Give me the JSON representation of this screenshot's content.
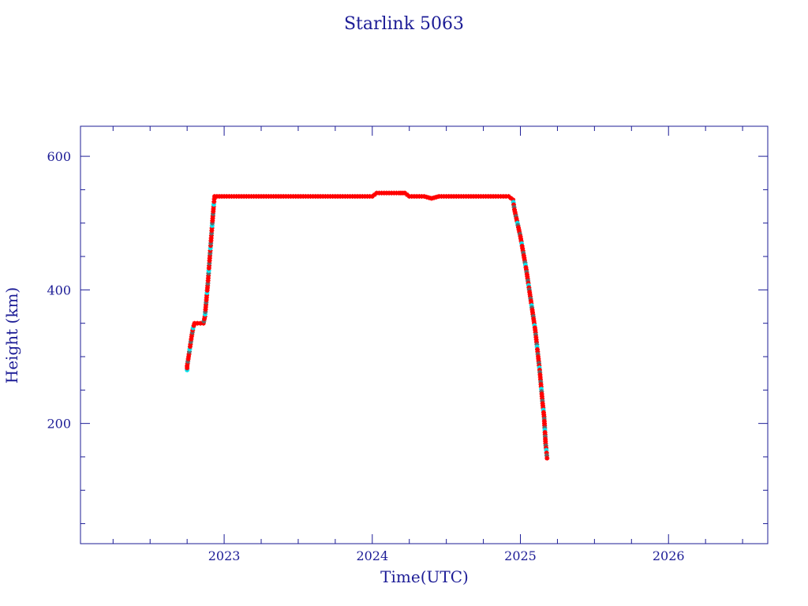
{
  "colors": {
    "axis": "#1c1c96",
    "text": "#1c1c96",
    "points": "#ff0000",
    "points_alt": "#00e5ee",
    "points_dark": "#666666"
  },
  "chart_data": {
    "type": "scatter",
    "title": "Starlink 5063",
    "xlabel": "Time(UTC)",
    "ylabel": "Height (km)",
    "x_unit": "year",
    "xlim": [
      2022.03,
      2026.67
    ],
    "ylim": [
      20,
      645
    ],
    "xticks": [
      2023,
      2024,
      2025,
      2026
    ],
    "xtick_labels": [
      "2023",
      "2024",
      "2025",
      "2026"
    ],
    "yticks": [
      200,
      400,
      600
    ],
    "ytick_labels": [
      "200",
      "400",
      "600"
    ],
    "grid": false,
    "series": [
      {
        "marker": "star",
        "points": [
          [
            2022.75,
            280
          ],
          [
            2022.75,
            286
          ],
          [
            2022.76,
            300
          ],
          [
            2022.77,
            315
          ],
          [
            2022.78,
            330
          ],
          [
            2022.79,
            343
          ],
          [
            2022.8,
            350
          ],
          [
            2022.82,
            350
          ],
          [
            2022.84,
            350
          ],
          [
            2022.86,
            350
          ],
          [
            2022.87,
            360
          ],
          [
            2022.88,
            385
          ],
          [
            2022.89,
            410
          ],
          [
            2022.9,
            440
          ],
          [
            2022.91,
            470
          ],
          [
            2022.92,
            500
          ],
          [
            2022.93,
            528
          ],
          [
            2022.935,
            540
          ],
          [
            2023.0,
            540
          ],
          [
            2023.1,
            540
          ],
          [
            2023.2,
            540
          ],
          [
            2023.3,
            540
          ],
          [
            2023.4,
            540
          ],
          [
            2023.5,
            540
          ],
          [
            2023.6,
            540
          ],
          [
            2023.7,
            540
          ],
          [
            2023.8,
            540
          ],
          [
            2023.9,
            540
          ],
          [
            2024.0,
            540
          ],
          [
            2024.03,
            545
          ],
          [
            2024.08,
            545
          ],
          [
            2024.13,
            545
          ],
          [
            2024.18,
            545
          ],
          [
            2024.22,
            545
          ],
          [
            2024.25,
            540
          ],
          [
            2024.3,
            540
          ],
          [
            2024.35,
            540
          ],
          [
            2024.4,
            537
          ],
          [
            2024.45,
            540
          ],
          [
            2024.55,
            540
          ],
          [
            2024.65,
            540
          ],
          [
            2024.75,
            540
          ],
          [
            2024.85,
            540
          ],
          [
            2024.92,
            540
          ],
          [
            2024.95,
            535
          ],
          [
            2024.96,
            520
          ],
          [
            2024.98,
            500
          ],
          [
            2025.0,
            480
          ],
          [
            2025.02,
            455
          ],
          [
            2025.04,
            430
          ],
          [
            2025.06,
            400
          ],
          [
            2025.08,
            370
          ],
          [
            2025.1,
            340
          ],
          [
            2025.12,
            300
          ],
          [
            2025.13,
            280
          ],
          [
            2025.14,
            255
          ],
          [
            2025.15,
            230
          ],
          [
            2025.16,
            210
          ],
          [
            2025.165,
            190
          ],
          [
            2025.17,
            170
          ],
          [
            2025.175,
            160
          ],
          [
            2025.18,
            148
          ]
        ]
      }
    ]
  }
}
